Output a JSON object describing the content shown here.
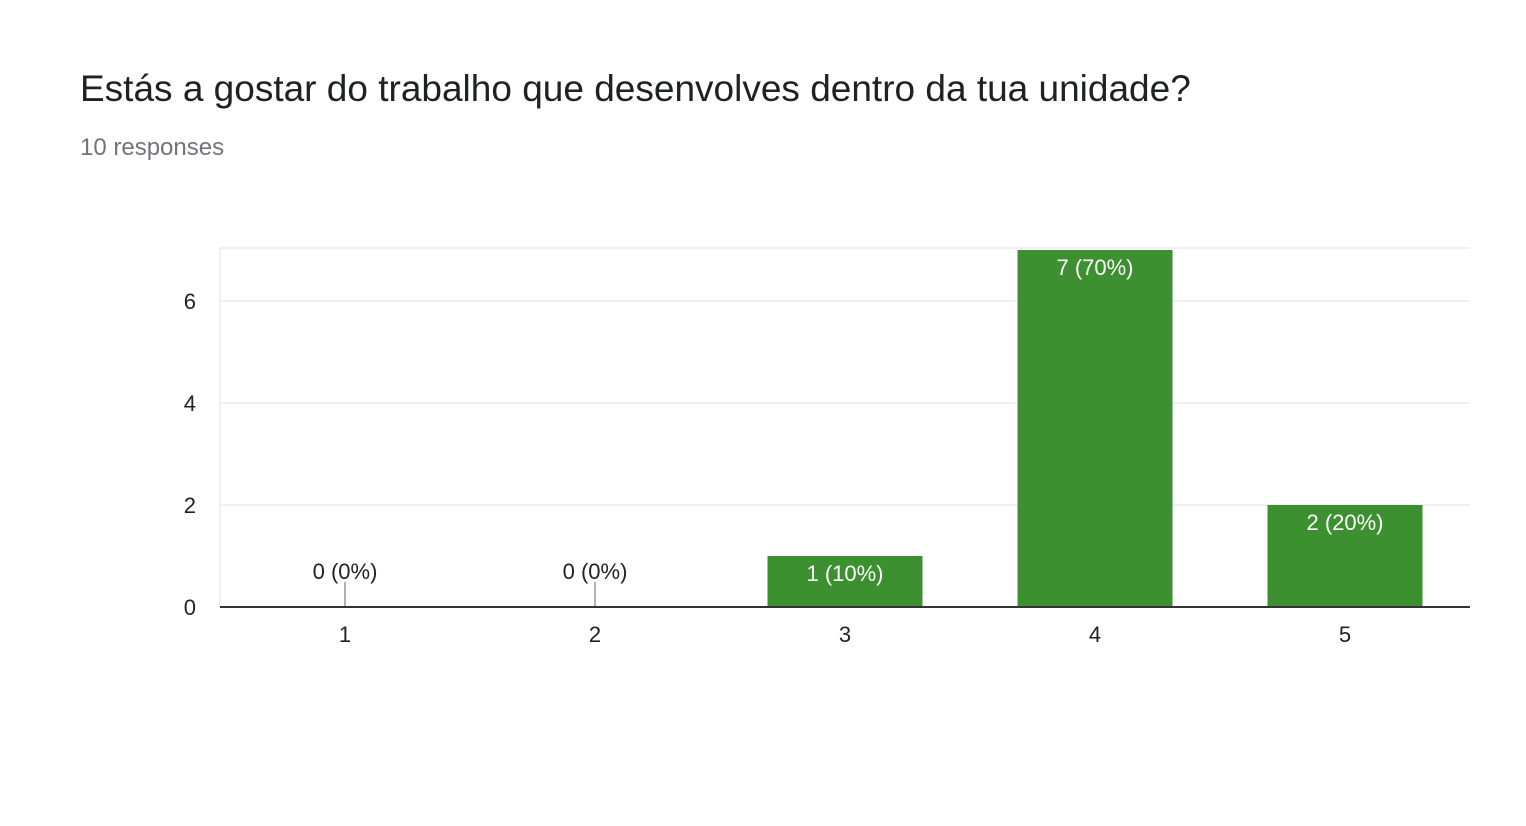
{
  "title": "Estás a gostar do trabalho que desenvolves dentro da tua unidade?",
  "responses_label": "10 responses",
  "colors": {
    "bar": "#3d902f",
    "gridline": "#e0e0e0",
    "axis": "#333333",
    "zero_tick": "#999999",
    "label_inside": "#ffffff",
    "label_outside": "#222222"
  },
  "chart_data": {
    "type": "bar",
    "categories": [
      "1",
      "2",
      "3",
      "4",
      "5"
    ],
    "values": [
      0,
      0,
      1,
      7,
      2
    ],
    "data_labels": [
      "0 (0%)",
      "0 (0%)",
      "1 (10%)",
      "7 (70%)",
      "2 (20%)"
    ],
    "yticks": [
      0,
      2,
      4,
      6
    ],
    "ylim": [
      0,
      7.05
    ],
    "grid": true,
    "legend": "none",
    "xlabel": "",
    "ylabel": ""
  }
}
